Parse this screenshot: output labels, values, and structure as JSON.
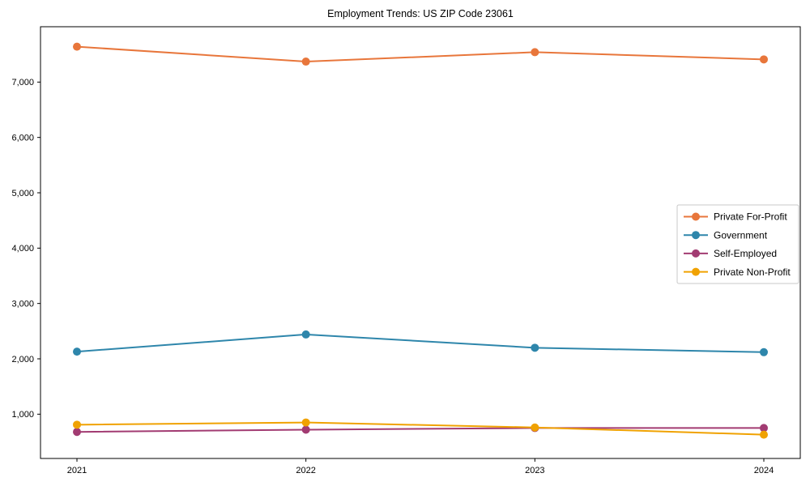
{
  "figure": {
    "background": "#ffffff",
    "plot_border_color": "#000000",
    "legend_border_color": "#c8c8c8"
  },
  "chart_data": {
    "type": "line",
    "title": "Employment Trends: US ZIP Code 23061",
    "categories": [
      "2021",
      "2022",
      "2023",
      "2024"
    ],
    "series": [
      {
        "name": "Private For-Profit",
        "color": "#E8763B",
        "values": [
          7640,
          7370,
          7540,
          7410
        ]
      },
      {
        "name": "Government",
        "color": "#2E86AB",
        "values": [
          2130,
          2440,
          2200,
          2120
        ]
      },
      {
        "name": "Self-Employed",
        "color": "#A23B72",
        "values": [
          680,
          720,
          750,
          750
        ]
      },
      {
        "name": "Private Non-Profit",
        "color": "#F0A202",
        "values": [
          810,
          850,
          760,
          630
        ]
      }
    ],
    "xlabel": "",
    "ylabel": "",
    "ylim": [
      200,
      8000
    ],
    "yticks": [
      1000,
      2000,
      3000,
      4000,
      5000,
      6000,
      7000
    ],
    "ytick_format": "comma",
    "grid": false,
    "marker": "circle",
    "legend_position": "center-right",
    "line_width": 2,
    "marker_radius": 5
  }
}
